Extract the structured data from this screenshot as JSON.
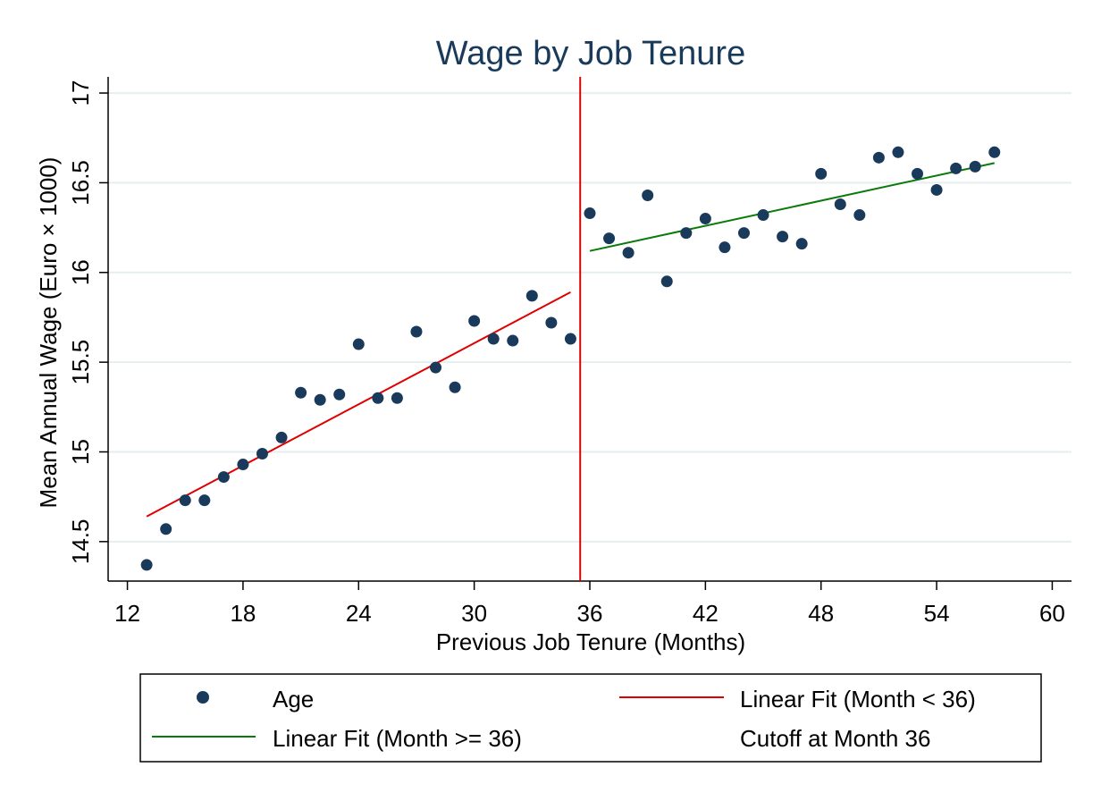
{
  "chart_data": {
    "type": "scatter",
    "title": "Wage by Job Tenure",
    "xlabel": "Previous Job Tenure (Months)",
    "ylabel": "Mean Annual Wage (Euro × 1000)",
    "xlim": [
      11,
      61
    ],
    "ylim": [
      14.28,
      17.09
    ],
    "xticks": [
      12,
      18,
      24,
      30,
      36,
      42,
      48,
      54,
      60
    ],
    "yticks": [
      14.5,
      15,
      15.5,
      16,
      16.5,
      17
    ],
    "xtick_labels": [
      "12",
      "18",
      "24",
      "30",
      "36",
      "42",
      "48",
      "54",
      "60"
    ],
    "ytick_labels": [
      "14.5",
      "15",
      "15.5",
      "16",
      "16.5",
      "17"
    ],
    "grid": "horizontal",
    "legend_position": "bottom",
    "series": [
      {
        "name": "Age",
        "type": "scatter",
        "color": "#1a3a5c",
        "x": [
          13,
          14,
          15,
          16,
          17,
          18,
          19,
          20,
          21,
          22,
          23,
          24,
          25,
          26,
          27,
          28,
          29,
          30,
          31,
          32,
          33,
          34,
          35,
          36,
          37,
          38,
          39,
          40,
          41,
          42,
          43,
          44,
          45,
          46,
          47,
          48,
          49,
          50,
          51,
          52,
          53,
          54,
          55,
          56,
          57
        ],
        "y": [
          14.37,
          14.57,
          14.73,
          14.73,
          14.86,
          14.93,
          14.99,
          15.08,
          15.33,
          15.29,
          15.32,
          15.6,
          15.3,
          15.3,
          15.67,
          15.47,
          15.36,
          15.73,
          15.63,
          15.62,
          15.87,
          15.72,
          15.63,
          16.33,
          16.19,
          16.11,
          16.43,
          15.95,
          16.22,
          16.3,
          16.14,
          16.22,
          16.32,
          16.2,
          16.16,
          16.55,
          16.38,
          16.32,
          16.64,
          16.67,
          16.55,
          16.46,
          16.58,
          16.59,
          16.67
        ]
      },
      {
        "name": "Linear Fit (Month < 36)",
        "type": "line",
        "color": "#e00000",
        "x": [
          13,
          35
        ],
        "y": [
          14.64,
          15.89
        ]
      },
      {
        "name": "Linear Fit (Month >= 36)",
        "type": "line",
        "color": "#0a7a0a",
        "x": [
          36,
          57
        ],
        "y": [
          16.12,
          16.61
        ]
      },
      {
        "name": "Cutoff at Month 36",
        "type": "vline",
        "color": "#e00000",
        "x": 35.5
      }
    ]
  }
}
